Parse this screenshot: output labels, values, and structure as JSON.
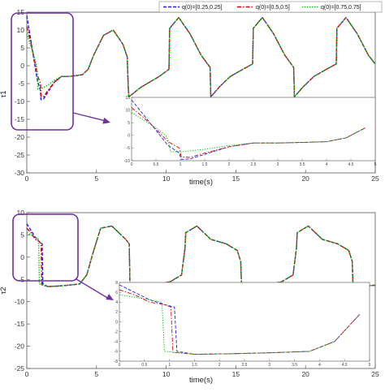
{
  "chart_data": [
    {
      "type": "line",
      "xlabel": "time(s)",
      "ylabel": "τ1",
      "xlim": [
        0,
        25
      ],
      "ylim": [
        -30,
        15
      ],
      "xticks": [
        "0",
        "5",
        "10",
        "15",
        "20",
        "25"
      ],
      "yticks": [
        "-30",
        "-25",
        "-20",
        "-15",
        "-10",
        "-5",
        "0",
        "5",
        "10",
        "15"
      ],
      "legend": "top-right",
      "series": [
        {
          "name": "q(0)=[0.25,0.25]",
          "color": "#1c1cff",
          "style": "dashed",
          "x": [
            0,
            0.25,
            0.5,
            0.75,
            0.98,
            1.02,
            1.2,
            1.5,
            2.0,
            2.5,
            3.0,
            3.5,
            4.0,
            4.4,
            4.8,
            5.5,
            6.2,
            6.9,
            7.2,
            7.28,
            7.32,
            8.2,
            9.5,
            10.2,
            10.25,
            10.9,
            11.7,
            12.5,
            13.15,
            13.2,
            13.8,
            14.6,
            15.5,
            16.2,
            16.25,
            16.9,
            17.7,
            18.5,
            19.15,
            19.2,
            19.8,
            20.6,
            21.5,
            22.2,
            22.25,
            22.9,
            23.7,
            24.5,
            25
          ],
          "y": [
            14,
            8,
            2,
            -4,
            -7,
            -9.5,
            -9.3,
            -7.5,
            -4.5,
            -3,
            -3,
            -2.8,
            -2.5,
            -1,
            3,
            8.5,
            10,
            6,
            2.5,
            -6,
            -8.7,
            -6,
            -3,
            -1,
            10.5,
            13.5,
            9,
            3,
            -0.5,
            -8.7,
            -6,
            -3,
            -1,
            0.5,
            10.5,
            13.5,
            9,
            3,
            -0.5,
            -8.7,
            -6,
            -3,
            -1,
            0.5,
            10.5,
            13.5,
            9,
            3,
            0.5
          ]
        },
        {
          "name": "q(0)=[0.5,0.5]",
          "color": "#e00000",
          "style": "dashdot",
          "x": [
            0,
            0.25,
            0.5,
            0.75,
            0.98,
            1.02,
            1.2,
            1.5,
            2.0,
            2.5,
            3.0,
            3.5,
            4.0,
            4.4,
            4.8,
            5.5,
            6.2,
            6.9,
            7.2,
            7.28,
            7.32,
            8.2,
            9.5,
            10.2,
            10.25,
            10.9,
            11.7,
            12.5,
            13.15,
            13.2,
            13.8,
            14.6,
            15.5,
            16.2,
            16.25,
            16.9,
            17.7,
            18.5,
            19.15,
            19.2,
            19.8,
            20.6,
            21.5,
            22.2,
            22.25,
            22.9,
            23.7,
            24.5,
            25
          ],
          "y": [
            11,
            7,
            2.5,
            -2.5,
            -5,
            -8.5,
            -8.7,
            -7,
            -4.5,
            -3,
            -3,
            -2.8,
            -2.5,
            -1,
            3,
            8.5,
            10,
            6,
            2.5,
            -6,
            -8.7,
            -6,
            -3,
            -1,
            10.5,
            13.5,
            9,
            3,
            -0.5,
            -8.7,
            -6,
            -3,
            -1,
            0.5,
            10.5,
            13.5,
            9,
            3,
            -0.5,
            -8.7,
            -6,
            -3,
            -1,
            0.5,
            10.5,
            13.5,
            9,
            3,
            0.5
          ]
        },
        {
          "name": "q(0)=[0.75,0.75]",
          "color": "#00c000",
          "style": "dotted",
          "x": [
            0,
            0.25,
            0.5,
            0.7,
            0.75,
            0.8,
            1.0,
            1.5,
            2.0,
            2.5,
            3.0,
            3.5,
            4.0,
            4.4,
            4.8,
            5.5,
            6.2,
            6.9,
            7.2,
            7.28,
            7.32,
            8.2,
            9.5,
            10.2,
            10.25,
            10.9,
            11.7,
            12.5,
            13.15,
            13.2,
            13.8,
            14.6,
            15.5,
            16.2,
            16.25,
            16.9,
            17.7,
            18.5,
            19.15,
            19.2,
            19.8,
            20.6,
            21.5,
            22.2,
            22.25,
            22.9,
            23.7,
            24.5,
            25
          ],
          "y": [
            9,
            6,
            3,
            0,
            -2,
            -6.5,
            -6.5,
            -5.5,
            -4,
            -3,
            -3,
            -2.8,
            -2.5,
            -1,
            3,
            8.5,
            10,
            6,
            2.5,
            -6,
            -8.7,
            -6,
            -3,
            -1,
            10.5,
            13.5,
            9,
            3,
            -0.5,
            -8.7,
            -6,
            -3,
            -1,
            0.5,
            10.5,
            13.5,
            9,
            3,
            -0.5,
            -8.7,
            -6,
            -3,
            -1,
            0.5,
            10.5,
            13.5,
            9,
            3,
            0.5
          ]
        }
      ],
      "inset": {
        "xlim": [
          0,
          5
        ],
        "ylim": [
          -10,
          15
        ],
        "xticks": [
          "0",
          "0.5",
          "1",
          "1.5",
          "2",
          "2.5",
          "3",
          "3.5",
          "4",
          "4.5",
          "5"
        ],
        "yticks": [
          "-10",
          "-5",
          "0",
          "5",
          "10",
          "15"
        ]
      }
    },
    {
      "type": "line",
      "xlabel": "time(s)",
      "ylabel": "τ2",
      "xlim": [
        0,
        25
      ],
      "ylim": [
        -25,
        10
      ],
      "xticks": [
        "0",
        "5",
        "10",
        "15",
        "20",
        "25"
      ],
      "yticks": [
        "-25",
        "-20",
        "-15",
        "-10",
        "-5",
        "0",
        "5",
        "10"
      ],
      "series": [
        {
          "name": "q(0)=[0.25,0.25]",
          "color": "#1c1cff",
          "style": "dashed",
          "x": [
            0,
            0.3,
            0.6,
            0.9,
            1.1,
            1.15,
            1.5,
            2.2,
            3.0,
            3.8,
            4.3,
            4.8,
            5.3,
            6.1,
            7.1,
            7.35,
            7.4,
            8.2,
            9.2,
            10.3,
            11.1,
            11.35,
            11.4,
            12.2,
            13.2,
            14.3,
            15.1,
            15.35,
            15.4,
            16.2,
            17.2,
            18.3,
            19.1,
            19.35,
            19.4,
            20.2,
            21.2,
            22.3,
            23.1,
            23.35,
            23.4,
            24.2,
            25
          ],
          "y": [
            7.5,
            6,
            4.5,
            3.5,
            3,
            -6,
            -6.6,
            -6.5,
            -6.3,
            -6,
            -4,
            1.5,
            6.5,
            7,
            4,
            3,
            -6,
            -6.5,
            -6.3,
            -5.5,
            -4,
            2,
            5.5,
            7,
            4,
            3,
            1.5,
            -1,
            -6,
            -6.5,
            -6.3,
            -5.5,
            -4,
            2,
            5.5,
            7,
            4,
            3,
            1.5,
            -1,
            -6,
            -6.5,
            -6.3
          ]
        },
        {
          "name": "q(0)=[0.5,0.5]",
          "color": "#e00000",
          "style": "dashdot",
          "x": [
            0,
            0.3,
            0.6,
            0.9,
            1.03,
            1.07,
            1.5,
            2.2,
            3.0,
            3.8,
            4.3,
            4.8,
            5.3,
            6.1,
            7.1,
            7.35,
            7.4,
            8.2,
            9.2,
            10.3,
            11.1,
            11.35,
            11.4,
            12.2,
            13.2,
            14.3,
            15.1,
            15.35,
            15.4,
            16.2,
            17.2,
            18.3,
            19.1,
            19.35,
            19.4,
            20.2,
            21.2,
            22.3,
            23.1,
            23.35,
            23.4,
            24.2,
            25
          ],
          "y": [
            6.5,
            5.5,
            4,
            3.5,
            3,
            -6.2,
            -6.6,
            -6.5,
            -6.3,
            -6,
            -4,
            1.5,
            6.5,
            7,
            4,
            3,
            -6,
            -6.5,
            -6.3,
            -5.5,
            -4,
            2,
            5.5,
            7,
            4,
            3,
            1.5,
            -1,
            -6,
            -6.5,
            -6.3,
            -5.5,
            -4,
            2,
            5.5,
            7,
            4,
            3,
            1.5,
            -1,
            -6,
            -6.5,
            -6.3
          ]
        },
        {
          "name": "q(0)=[0.75,0.75]",
          "color": "#00c000",
          "style": "dotted",
          "x": [
            0,
            0.3,
            0.6,
            0.85,
            0.9,
            1.5,
            2.2,
            3.0,
            3.8,
            4.3,
            4.8,
            5.3,
            6.1,
            7.1,
            7.35,
            7.4,
            8.2,
            9.2,
            10.3,
            11.1,
            11.35,
            11.4,
            12.2,
            13.2,
            14.3,
            15.1,
            15.35,
            15.4,
            16.2,
            17.2,
            18.3,
            19.1,
            19.35,
            19.4,
            20.2,
            21.2,
            22.3,
            23.1,
            23.35,
            23.4,
            24.2,
            25
          ],
          "y": [
            5.5,
            5,
            4.5,
            4,
            -6,
            -6.6,
            -6.5,
            -6.3,
            -6,
            -4,
            1.5,
            6.5,
            7,
            4,
            3,
            -6,
            -6.5,
            -6.3,
            -5.5,
            -4,
            2,
            5.5,
            7,
            4,
            3,
            1.5,
            -1,
            -6,
            -6.5,
            -6.3,
            -5.5,
            -4,
            2,
            5.5,
            7,
            4,
            3,
            1.5,
            -1,
            -6,
            -6.5,
            -6.3
          ]
        }
      ],
      "inset": {
        "xlim": [
          0,
          5
        ],
        "ylim": [
          -8,
          8
        ],
        "xticks": [
          "0",
          "0.5",
          "1",
          "1.5",
          "2",
          "2.5",
          "3",
          "3.5",
          "4",
          "4.5",
          "5"
        ],
        "yticks": [
          "-8",
          "-6",
          "-4",
          "-2",
          "0",
          "2",
          "4",
          "6",
          "8"
        ]
      }
    }
  ],
  "highlight_color": "#7030a0"
}
